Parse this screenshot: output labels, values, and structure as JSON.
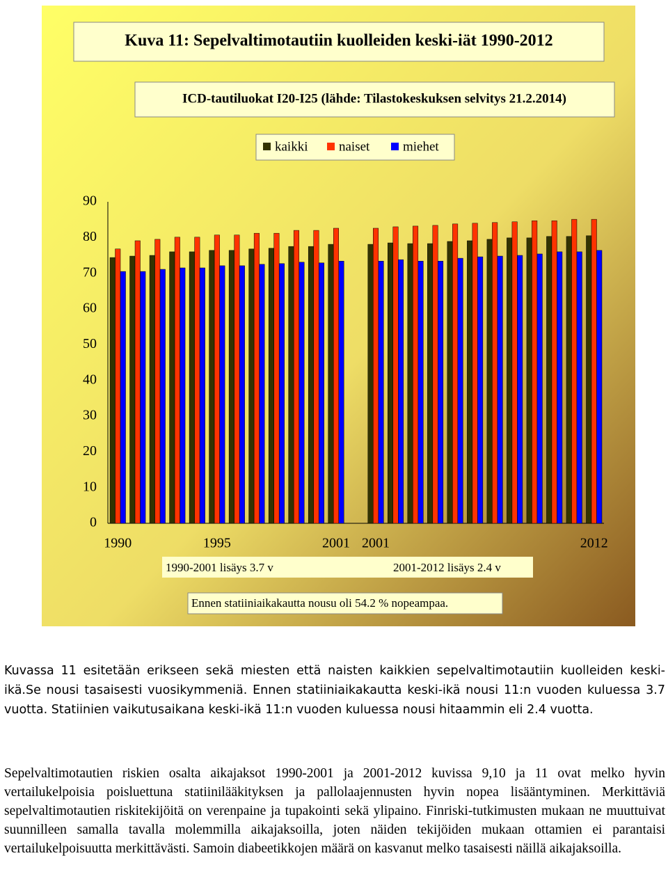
{
  "chart_data": {
    "type": "bar",
    "title": "Kuva 11: Sepelvaltimotautiin kuolleiden keski-iät 1990-2012",
    "subtitle": "ICD-tautiluokat I20-I25 (lähde: Tilastokeskuksen selvitys 21.2.2014)",
    "categories": [
      "1990",
      null,
      null,
      null,
      null,
      "1995",
      null,
      null,
      null,
      null,
      null,
      "2001",
      null,
      "2001",
      null,
      null,
      null,
      null,
      null,
      null,
      null,
      null,
      null,
      null,
      "2012"
    ],
    "series": [
      {
        "name": "kaikki",
        "color": "#333300",
        "values": [
          74.4,
          74.8,
          75.0,
          76.0,
          76.0,
          76.4,
          76.4,
          76.8,
          77.0,
          77.5,
          77.5,
          78.1,
          null,
          78.1,
          78.5,
          78.3,
          78.3,
          78.9,
          79.1,
          79.5,
          79.9,
          79.9,
          80.3,
          80.3,
          80.5
        ]
      },
      {
        "name": "naiset",
        "color": "#ff3300",
        "values": [
          76.8,
          79.1,
          79.5,
          80.1,
          80.1,
          80.7,
          80.7,
          81.2,
          81.2,
          82.0,
          82.0,
          82.6,
          null,
          82.6,
          83.0,
          83.2,
          83.4,
          83.8,
          84.0,
          84.2,
          84.4,
          84.7,
          84.7,
          85.1,
          85.1
        ]
      },
      {
        "name": "miehet",
        "color": "#0000ff",
        "values": [
          70.5,
          70.5,
          71.1,
          71.5,
          71.5,
          72.1,
          72.1,
          72.5,
          72.7,
          73.1,
          72.9,
          73.4,
          null,
          73.4,
          73.8,
          73.4,
          73.4,
          74.2,
          74.6,
          74.8,
          75.0,
          75.4,
          76.0,
          76.0,
          76.4
        ]
      }
    ],
    "ylim": [
      0,
      90
    ],
    "yticks": [
      0,
      10,
      20,
      30,
      40,
      50,
      60,
      70,
      80,
      90
    ],
    "grid": false,
    "annotations": [
      "1990-2001 lisäys 3.7 v",
      "2001-2012 lisäys 2.4  v",
      "Ennen statiiniaikakautta nousu oli 54.2 % nopeampaa."
    ]
  },
  "paragraphs": [
    "Kuvassa 11 esitetään erikseen sekä miesten että naisten kaikkien sepelvaltimotautiin kuolleiden keski-ikä.Se nousi tasaisesti vuosikymmeniä. Ennen statiiniaikakautta keski-ikä nousi 11:n vuoden kuluessa 3.7 vuotta. Statiinien vaikutusaikana keski-ikä 11:n vuoden kuluessa nousi hitaammin eli 2.4 vuotta.",
    "Sepelvaltimotautien riskien osalta aikajaksot 1990-2001 ja 2001-2012 kuvissa 9,10 ja 11 ovat melko hyvin vertailukelpoisia poisluettuna statiinilääkityksen ja pallolaajennusten  hyvin nopea lisääntyminen. Merkittäviä sepelvaltimotautien riskitekijöitä on verenpaine ja tupakointi sekä ylipaino. Finriski-tutkimusten mukaan ne muuttuivat suunnilleen samalla tavalla molemmilla aikajaksoilla, joten näiden tekijöiden mukaan ottamien ei parantaisi vertailukelpoisuutta merkittävästi. Samoin diabeetikkojen määrä on kasvanut melko tasaisesti näillä aikajaksoilla."
  ]
}
